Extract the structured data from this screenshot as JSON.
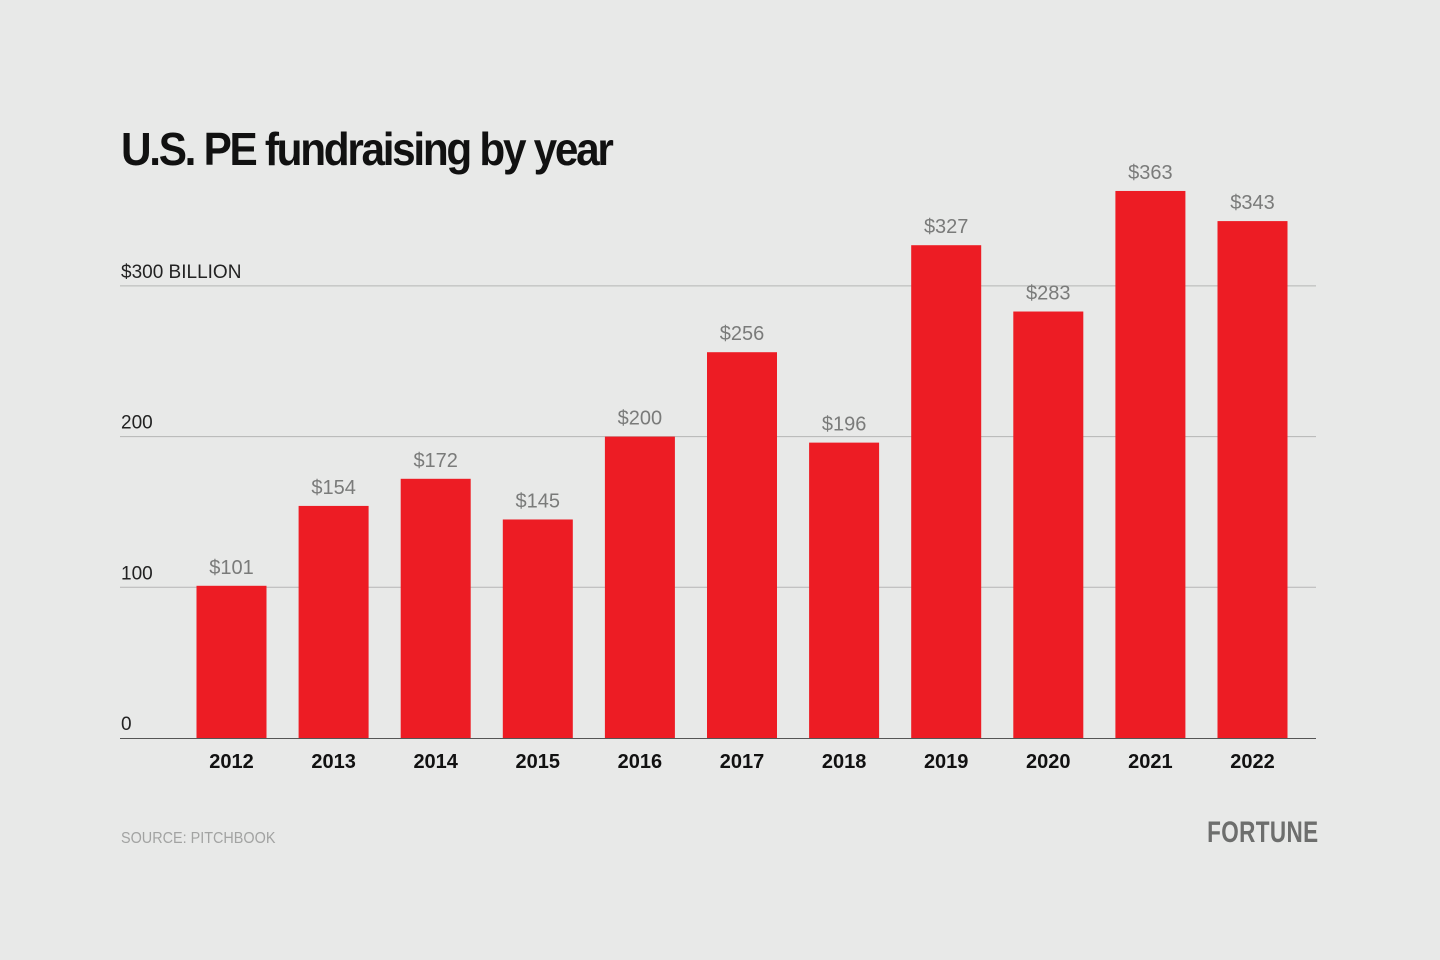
{
  "chart_data": {
    "type": "bar",
    "title": "U.S. PE fundraising by year",
    "categories": [
      "2012",
      "2013",
      "2014",
      "2015",
      "2016",
      "2017",
      "2018",
      "2019",
      "2020",
      "2021",
      "2022"
    ],
    "values": [
      101,
      154,
      172,
      145,
      200,
      256,
      196,
      327,
      283,
      363,
      343
    ],
    "data_labels": [
      "$101",
      "$154",
      "$172",
      "$145",
      "$200",
      "$256",
      "$196",
      "$327",
      "$283",
      "$363",
      "$343"
    ],
    "yticks": [
      0,
      100,
      200,
      300
    ],
    "ytick_labels": [
      "0",
      "100",
      "200",
      "$300 BILLION"
    ],
    "ylim": [
      0,
      380
    ],
    "grid": true,
    "xlabel": "",
    "ylabel": "",
    "colors": {
      "bar": "#ed1c24",
      "background": "#e8e9e8",
      "gridline": "#b5b6b5",
      "data_label": "#7a7b7a"
    }
  },
  "footer": {
    "source": "SOURCE: PITCHBOOK",
    "logo": "FORTUNE"
  }
}
